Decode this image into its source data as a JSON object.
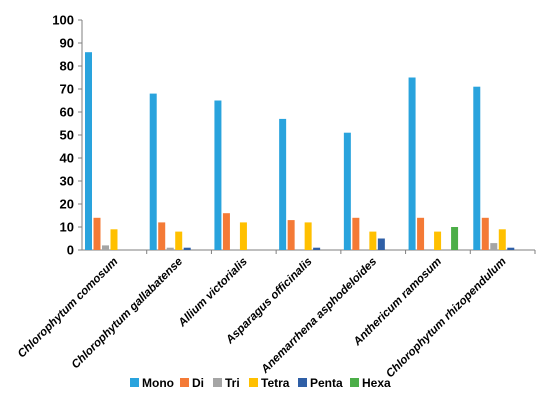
{
  "chart_data": {
    "type": "bar",
    "title": "",
    "xlabel": "",
    "ylabel": "",
    "ylim": [
      0,
      100
    ],
    "yticks": [
      0,
      10,
      20,
      30,
      40,
      50,
      60,
      70,
      80,
      90,
      100
    ],
    "legend_position": "bottom",
    "grid": false,
    "categories": [
      "Chlorophytum comosum",
      "Chlorophytum gallabatense",
      "Allium victorialis",
      "Asparagus officinalis",
      "Anemarrhena asphodeloides",
      "Anthericum ramosum",
      "Chlorophytum rhizopendulum"
    ],
    "series": [
      {
        "name": "Mono",
        "color": "#29A3DD",
        "values": [
          86,
          68,
          65,
          57,
          51,
          75,
          71
        ]
      },
      {
        "name": "Di",
        "color": "#F47A36",
        "values": [
          14,
          12,
          16,
          13,
          14,
          14,
          14
        ]
      },
      {
        "name": "Tri",
        "color": "#A5A5A5",
        "values": [
          2,
          1,
          0,
          0,
          0,
          0,
          3
        ]
      },
      {
        "name": "Tetra",
        "color": "#FFC000",
        "values": [
          9,
          8,
          12,
          12,
          8,
          8,
          9
        ]
      },
      {
        "name": "Penta",
        "color": "#2F5FA6",
        "values": [
          0,
          1,
          0,
          1,
          5,
          0,
          1
        ]
      },
      {
        "name": "Hexa",
        "color": "#4CAE48",
        "values": [
          0,
          0,
          0,
          0,
          0,
          10,
          0
        ]
      }
    ]
  }
}
